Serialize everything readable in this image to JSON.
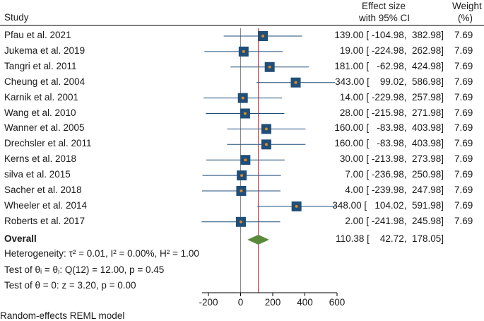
{
  "header": {
    "study": "Study",
    "effect_line1": "Effect size",
    "effect_line2": "with 95% CI",
    "weight_line1": "Weight",
    "weight_line2": "(%)"
  },
  "chart_data": {
    "type": "forest",
    "studies": [
      {
        "name": "Pfau et al. 2021",
        "es": 139.0,
        "lo": -104.98,
        "hi": 382.98,
        "ci_text": "139.00 [ -104.98,  382.98]",
        "weight": "7.69"
      },
      {
        "name": "Jukema et al. 2019",
        "es": 19.0,
        "lo": -224.98,
        "hi": 262.98,
        "ci_text": "19.00 [ -224.98,  262.98]",
        "weight": "7.69"
      },
      {
        "name": "Tangri et al. 2011",
        "es": 181.0,
        "lo": -62.98,
        "hi": 424.98,
        "ci_text": "181.00 [   -62.98,  424.98]",
        "weight": "7.69"
      },
      {
        "name": "Cheung et al. 2004",
        "es": 343.0,
        "lo": 99.02,
        "hi": 586.98,
        "ci_text": "343.00 [    99.02,  586.98]",
        "weight": "7.69"
      },
      {
        "name": "Karnik et al. 2001",
        "es": 14.0,
        "lo": -229.98,
        "hi": 257.98,
        "ci_text": "14.00 [ -229.98,  257.98]",
        "weight": "7.69"
      },
      {
        "name": "Wang et al. 2010",
        "es": 28.0,
        "lo": -215.98,
        "hi": 271.98,
        "ci_text": "28.00 [ -215.98,  271.98]",
        "weight": "7.69"
      },
      {
        "name": "Wanner et al. 2005",
        "es": 160.0,
        "lo": -83.98,
        "hi": 403.98,
        "ci_text": "160.00 [   -83.98,  403.98]",
        "weight": "7.69"
      },
      {
        "name": "Drechsler et al. 2011",
        "es": 160.0,
        "lo": -83.98,
        "hi": 403.98,
        "ci_text": "160.00 [   -83.98,  403.98]",
        "weight": "7.69"
      },
      {
        "name": "Kerns et al. 2018",
        "es": 30.0,
        "lo": -213.98,
        "hi": 273.98,
        "ci_text": "30.00 [ -213.98,  273.98]",
        "weight": "7.69"
      },
      {
        "name": "silva et al. 2015",
        "es": 7.0,
        "lo": -236.98,
        "hi": 250.98,
        "ci_text": "7.00 [ -236.98,  250.98]",
        "weight": "7.69"
      },
      {
        "name": "Sacher et al. 2018",
        "es": 4.0,
        "lo": -239.98,
        "hi": 247.98,
        "ci_text": "4.00 [ -239.98,  247.98]",
        "weight": "7.69"
      },
      {
        "name": "Wheeler et al. 2014",
        "es": 348.0,
        "lo": 104.02,
        "hi": 591.98,
        "ci_text": "348.00 [   104.02,  591.98]",
        "weight": "7.69"
      },
      {
        "name": "Roberts et al. 2017",
        "es": 2.0,
        "lo": -241.98,
        "hi": 245.98,
        "ci_text": "2.00 [ -241.98,  245.98]",
        "weight": "7.69"
      }
    ],
    "overall": {
      "label": "Overall",
      "es": 110.38,
      "lo": 42.72,
      "hi": 178.05,
      "ci_text": "110.38 [    42.72,  178.05]"
    },
    "heterogeneity": "Heterogeneity: τ² = 0.01, I² = 0.00%, H² = 1.00",
    "test_theta_i": "Test of θᵢ = θⱼ: Q(12) = 12.00, p = 0.45",
    "test_theta_0": "Test of θ = 0: z = 3.20, p = 0.00",
    "x_ticks": [
      -200,
      0,
      200,
      400,
      600
    ],
    "x_tick_labels": [
      "-200",
      "0",
      "200",
      "400",
      "600"
    ],
    "xlim": [
      -240,
      600
    ],
    "model_note": "Random-effects REML model",
    "colors": {
      "marker": "#1f4e79",
      "dot": "#e08a1e",
      "ci_line": "#1f4e79",
      "diamond": "#5a8a3a",
      "overall_line": "#d0202e",
      "null_line": "#888888"
    }
  }
}
